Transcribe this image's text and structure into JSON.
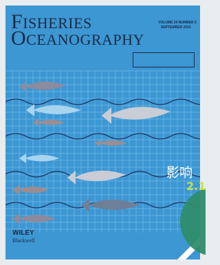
{
  "cover": {
    "title_line1": "FISHERIES",
    "title_line2": "OCEANOGRAPHY",
    "volume": "VOLUME 24 NUMBER 5",
    "date": "SEPTEMBER 2015",
    "publisher": "WILEY",
    "imprint": "Blackwell"
  },
  "overlay": {
    "label": "影响",
    "value": "2.1"
  }
}
